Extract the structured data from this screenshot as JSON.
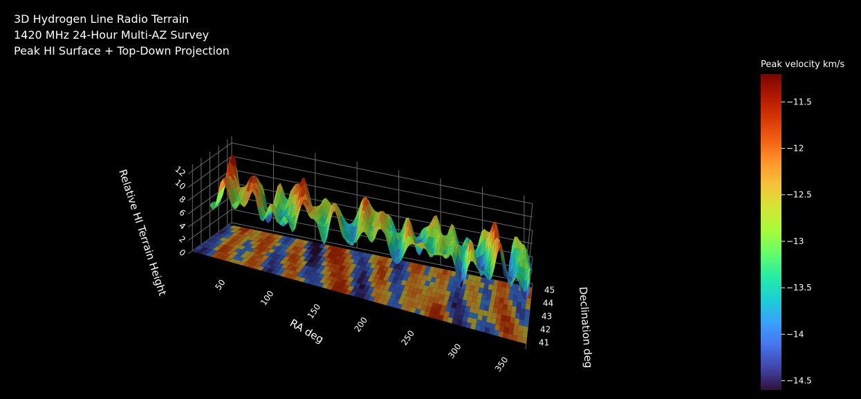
{
  "chart_data": {
    "type": "surface",
    "title_lines": [
      "3D Hydrogen Line Radio Terrain",
      "1420 MHz 24-Hour Multi-AZ Survey",
      "Peak HI Surface + Top-Down Projection"
    ],
    "x_axis": {
      "label": "RA deg",
      "ticks": [
        "50",
        "100",
        "150",
        "200",
        "250",
        "300",
        "350"
      ],
      "range": [
        0,
        360
      ]
    },
    "y_axis": {
      "label": "Declination deg",
      "ticks": [
        "41",
        "42",
        "43",
        "44",
        "45"
      ],
      "range": [
        40.5,
        45.5
      ]
    },
    "z_axis": {
      "label": "Relative HI Terrain Height",
      "ticks": [
        "0",
        "2",
        "4",
        "6",
        "8",
        "10",
        "12"
      ],
      "range": [
        0,
        13
      ]
    },
    "colorbar": {
      "title": "Peak velocity km/s",
      "ticks": [
        "−11.5",
        "−12",
        "−12.5",
        "−13",
        "−13.5",
        "−14",
        "−14.5"
      ],
      "range": [
        -14.6,
        -11.2
      ],
      "colors": [
        "#30123b",
        "#4145ab",
        "#4675ed",
        "#39a2fc",
        "#1bcfd4",
        "#24eca6",
        "#61fc6c",
        "#a4fc3b",
        "#d1e834",
        "#f3c63a",
        "#fe9b2d",
        "#f36315",
        "#d93806",
        "#b11901",
        "#7a0402"
      ]
    }
  }
}
